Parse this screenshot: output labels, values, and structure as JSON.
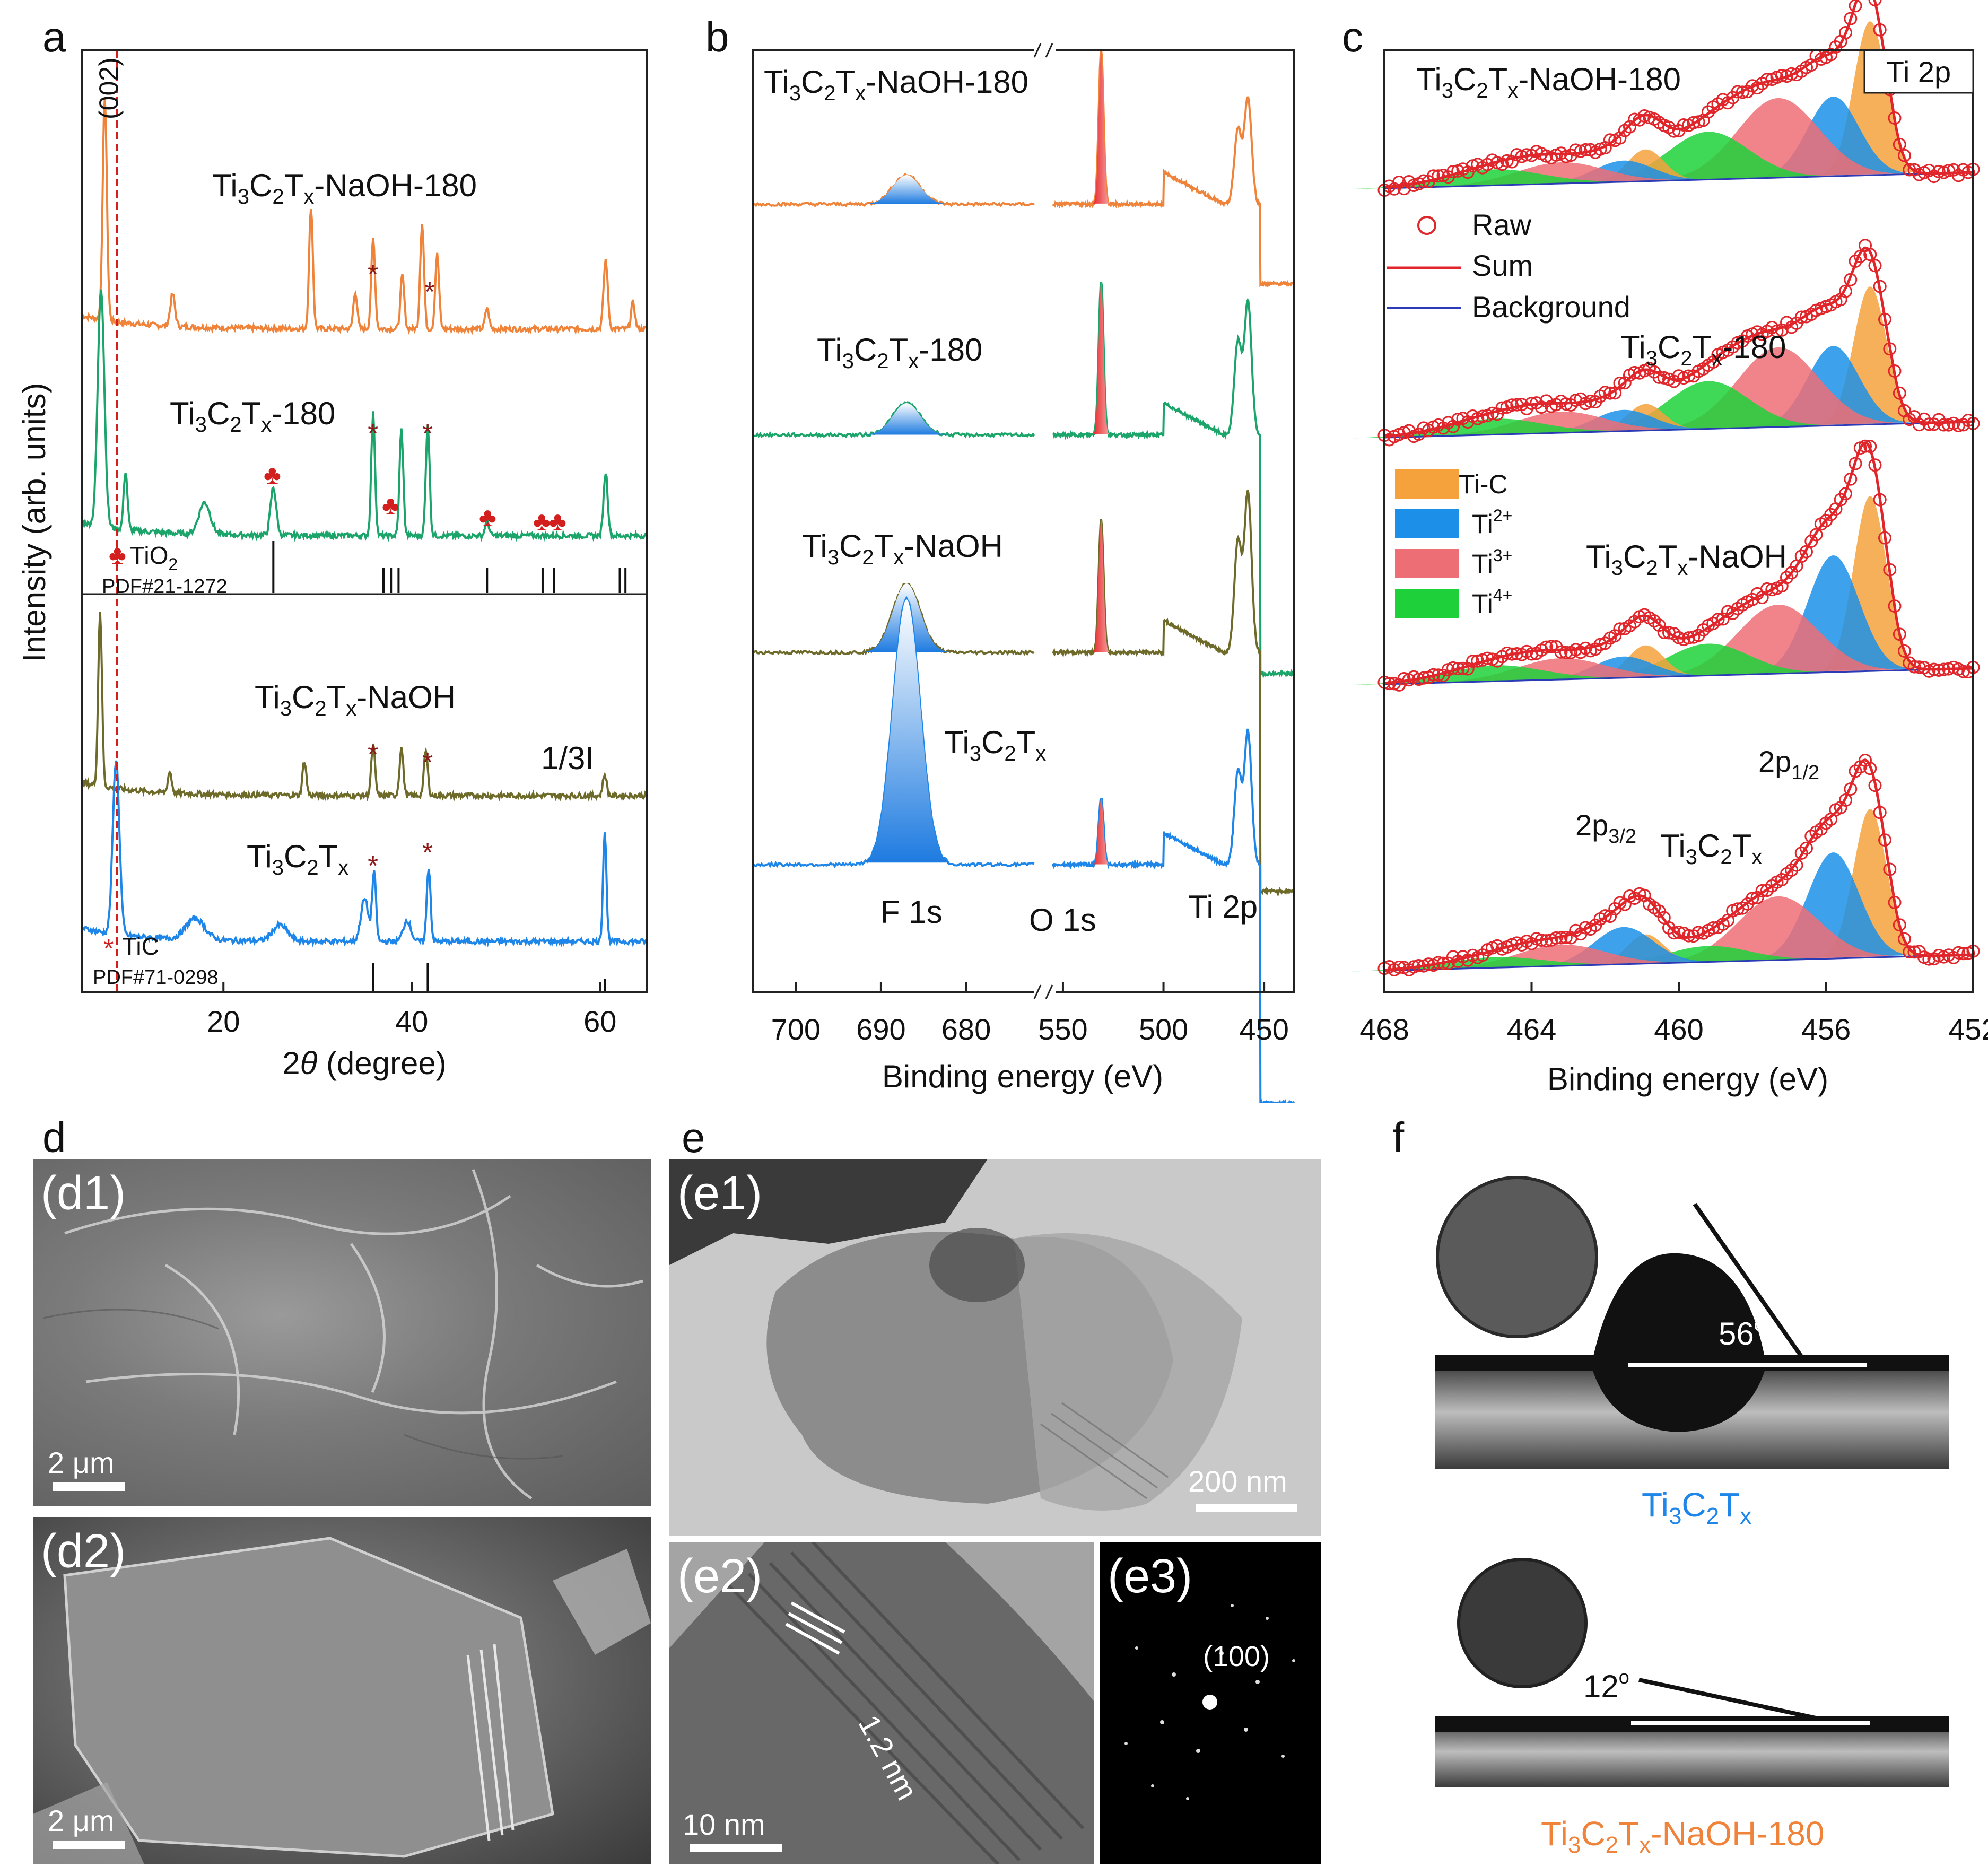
{
  "panel_labels": {
    "a": "a",
    "b": "b",
    "c": "c",
    "d": "d",
    "e": "e",
    "f": "f"
  },
  "colors": {
    "orange": "#F0833A",
    "green": "#1BA56A",
    "olive": "#6E6A2A",
    "blue": "#1E86E8",
    "red": "#D41F1F",
    "fit_red": "#E0262B",
    "bg_blue": "#2A3BB5",
    "tic_c": "#F5A23D",
    "ti2": "#1C90E8",
    "ti3": "#EE6E76",
    "ti4": "#1ED13A"
  },
  "a": {
    "ylabel": "Intensity (arb. units)",
    "xlabel_pre": "2",
    "xlabel_theta": "θ",
    "xlabel_post": " (degree)",
    "xticks": [
      "20",
      "40",
      "60"
    ],
    "peak_002": "(002)",
    "samples": [
      {
        "pre": "Ti",
        "s1": "3",
        "mid": "C",
        "s2": "2",
        "mid2": "T",
        "s3": "x",
        "post": "-NaOH-180"
      },
      {
        "pre": "Ti",
        "s1": "3",
        "mid": "C",
        "s2": "2",
        "mid2": "T",
        "s3": "x",
        "post": "-180"
      },
      {
        "pre": "Ti",
        "s1": "3",
        "mid": "C",
        "s2": "2",
        "mid2": "T",
        "s3": "x",
        "post": "-NaOH"
      },
      {
        "pre": "Ti",
        "s1": "3",
        "mid": "C",
        "s2": "2",
        "mid2": "T",
        "s3": "x",
        "post": ""
      }
    ],
    "scale_note": "1/3I",
    "tio2_ref": "TiO",
    "tio2_sub": "2",
    "tio2_pdf": "PDF#21-1272",
    "tic_ref": "TiC",
    "tic_pdf": "PDF#71-0298",
    "star": "*",
    "club": "♣",
    "chart_data": {
      "type": "line",
      "x_range": [
        5,
        65
      ],
      "xticks": [
        20,
        40,
        60
      ],
      "reference_TiO2_peaks": [
        25.3,
        37.0,
        37.8,
        38.6,
        48.0,
        53.9,
        55.1,
        62.1,
        62.7
      ],
      "reference_TiC_peaks": [
        35.9,
        41.7,
        60.5
      ],
      "series": [
        {
          "name": "Ti3C2Tx-NaOH-180"
        },
        {
          "name": "Ti3C2Tx-180"
        },
        {
          "name": "Ti3C2Tx-NaOH"
        },
        {
          "name": "Ti3C2Tx"
        }
      ]
    }
  },
  "b": {
    "xlabel": "Binding energy (eV)",
    "xticks_left": [
      "700",
      "690",
      "680"
    ],
    "xticks_right": [
      "550",
      "500",
      "450"
    ],
    "samples": [
      {
        "pre": "Ti",
        "s1": "3",
        "mid": "C",
        "s2": "2",
        "mid2": "T",
        "s3": "x",
        "post": "-NaOH-180"
      },
      {
        "pre": "Ti",
        "s1": "3",
        "mid": "C",
        "s2": "2",
        "mid2": "T",
        "s3": "x",
        "post": "-180"
      },
      {
        "pre": "Ti",
        "s1": "3",
        "mid": "C",
        "s2": "2",
        "mid2": "T",
        "s3": "x",
        "post": "-NaOH"
      },
      {
        "pre": "Ti",
        "s1": "3",
        "mid": "C",
        "s2": "2",
        "mid2": "T",
        "s3": "x",
        "post": ""
      }
    ],
    "peaks": [
      "F 1s",
      "O 1s",
      "Ti 2p"
    ],
    "chart_data": {
      "type": "line",
      "x_ranges": [
        [
          705,
          672
        ],
        [
          555,
          435
        ]
      ],
      "xticks": [
        700,
        690,
        680,
        550,
        500,
        450
      ],
      "series": [
        {
          "name": "Ti3C2Tx-NaOH-180"
        },
        {
          "name": "Ti3C2Tx-180"
        },
        {
          "name": "Ti3C2Tx-NaOH"
        },
        {
          "name": "Ti3C2Tx"
        }
      ]
    }
  },
  "c": {
    "xlabel": "Binding energy (eV)",
    "xticks": [
      "468",
      "464",
      "460",
      "456",
      "452"
    ],
    "box_label": "Ti 2p",
    "legend1": [
      "Raw",
      "Sum",
      "Background"
    ],
    "legend2": [
      {
        "label": "Ti-C",
        "sup": ""
      },
      {
        "label": "Ti",
        "sup": "2+"
      },
      {
        "label": "Ti",
        "sup": "3+"
      },
      {
        "label": "Ti",
        "sup": "4+"
      }
    ],
    "samples": [
      {
        "pre": "Ti",
        "s1": "3",
        "mid": "C",
        "s2": "2",
        "mid2": "T",
        "s3": "x",
        "post": "-NaOH-180"
      },
      {
        "pre": "Ti",
        "s1": "3",
        "mid": "C",
        "s2": "2",
        "mid2": "T",
        "s3": "x",
        "post": "-180"
      },
      {
        "pre": "Ti",
        "s1": "3",
        "mid": "C",
        "s2": "2",
        "mid2": "T",
        "s3": "x",
        "post": "-NaOH"
      },
      {
        "pre": "Ti",
        "s1": "3",
        "mid": "C",
        "s2": "2",
        "mid2": "T",
        "s3": "x",
        "post": ""
      }
    ],
    "p12": "2p",
    "p12_sub": "1/2",
    "p32": "2p",
    "p32_sub": "3/2",
    "chart_data": {
      "type": "area",
      "x_range": [
        468,
        452
      ],
      "xticks": [
        468,
        464,
        460,
        456,
        452
      ],
      "components": [
        {
          "name": "Ti-C",
          "center": 454.9
        },
        {
          "name": "Ti2+",
          "center": 455.8
        },
        {
          "name": "Ti3+",
          "center": 457.2
        },
        {
          "name": "Ti4+",
          "center": 459.0
        }
      ],
      "series": [
        {
          "name": "Ti3C2Tx-NaOH-180"
        },
        {
          "name": "Ti3C2Tx-180"
        },
        {
          "name": "Ti3C2Tx-NaOH"
        },
        {
          "name": "Ti3C2Tx"
        }
      ]
    }
  },
  "d": {
    "d1": "(d1)",
    "d2": "(d2)",
    "scale1": "2 μm",
    "scale2": "2 μm"
  },
  "e": {
    "e1": "(e1)",
    "e2": "(e2)",
    "e3": "(e3)",
    "scale1": "200 nm",
    "scale2": "10 nm",
    "spacing": "1.2 nm",
    "spot": "(100)"
  },
  "f": {
    "angle1": "56",
    "angle2": "12",
    "deg": "o",
    "label1": {
      "pre": "Ti",
      "s1": "3",
      "mid": "C",
      "s2": "2",
      "mid2": "T",
      "s3": "x",
      "post": ""
    },
    "label2": {
      "pre": "Ti",
      "s1": "3",
      "mid": "C",
      "s2": "2",
      "mid2": "T",
      "s3": "x",
      "post": "-NaOH-180"
    }
  }
}
